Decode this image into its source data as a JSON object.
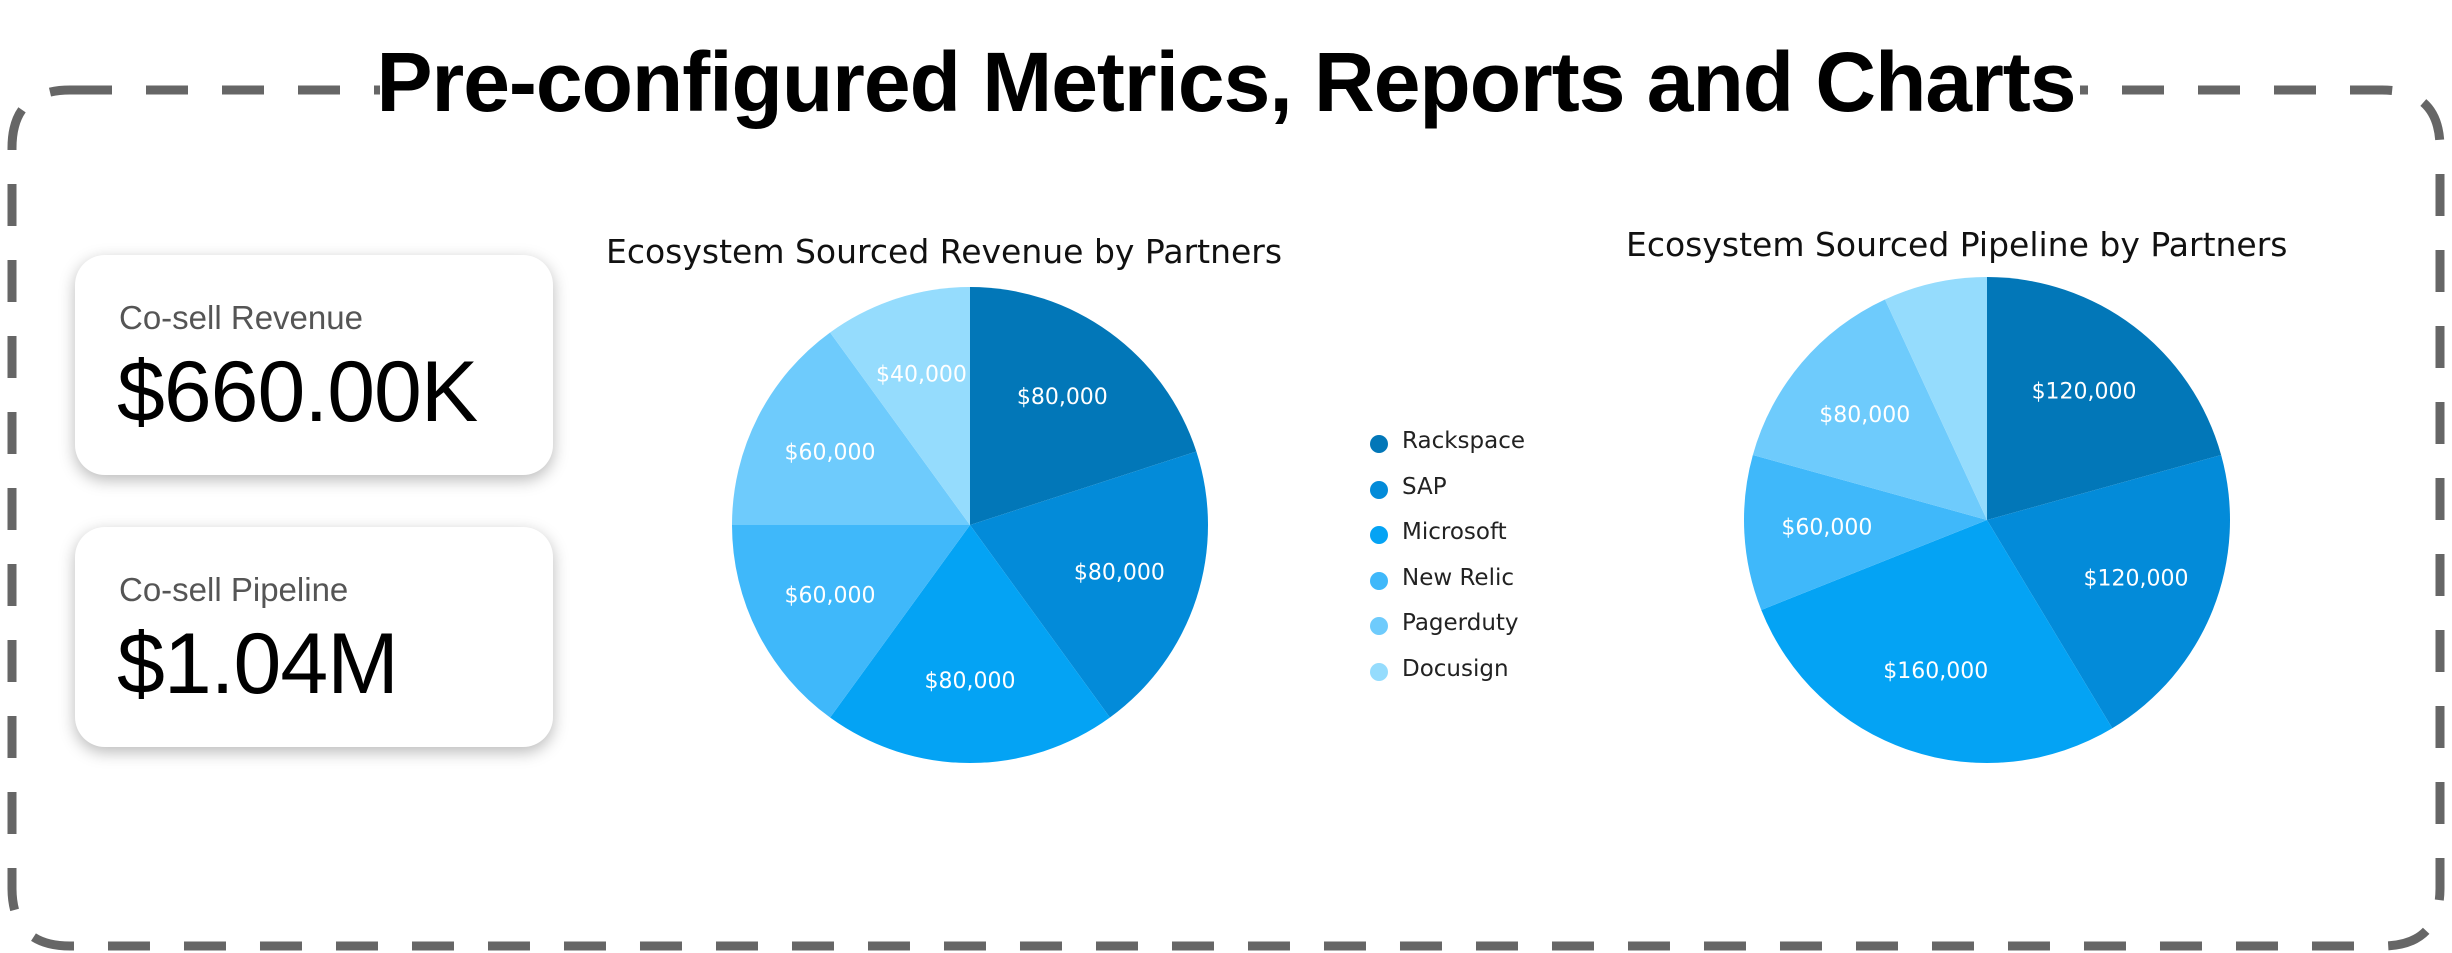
{
  "page": {
    "title": "Pre-configured Metrics, Reports and Charts"
  },
  "kpis": [
    {
      "label": "Co-sell Revenue",
      "value": "$660.00K"
    },
    {
      "label": "Co-sell Pipeline",
      "value": "$1.04M"
    }
  ],
  "colors": {
    "frame_dash": "#666666",
    "partners": [
      "#0277b8",
      "#038bd9",
      "#04a3f4",
      "#3fb8fa",
      "#6ecbfc",
      "#95dcfd"
    ]
  },
  "legend": [
    "Rackspace",
    "SAP",
    "Microsoft",
    "New Relic",
    "Pagerduty",
    "Docusign"
  ],
  "chart_data": [
    {
      "type": "pie",
      "title": "Ecosystem Sourced Revenue by Partners",
      "categories": [
        "Rackspace",
        "SAP",
        "Microsoft",
        "New Relic",
        "Pagerduty",
        "Docusign"
      ],
      "values": [
        80000,
        80000,
        80000,
        60000,
        60000,
        40000
      ],
      "data_labels": [
        "$80,000",
        "$80,000",
        "$80,000",
        "$60,000",
        "$60,000",
        "$40,000"
      ],
      "legend_position": "right"
    },
    {
      "type": "pie",
      "title": "Ecosystem Sourced Pipeline by Partners",
      "categories": [
        "Rackspace",
        "SAP",
        "Microsoft",
        "New Relic",
        "Pagerduty",
        "Docusign"
      ],
      "values": [
        120000,
        120000,
        160000,
        60000,
        80000,
        40000
      ],
      "data_labels": [
        "$120,000",
        "$120,000",
        "$160,000",
        "$60,000",
        "$80,000",
        ""
      ]
    }
  ]
}
